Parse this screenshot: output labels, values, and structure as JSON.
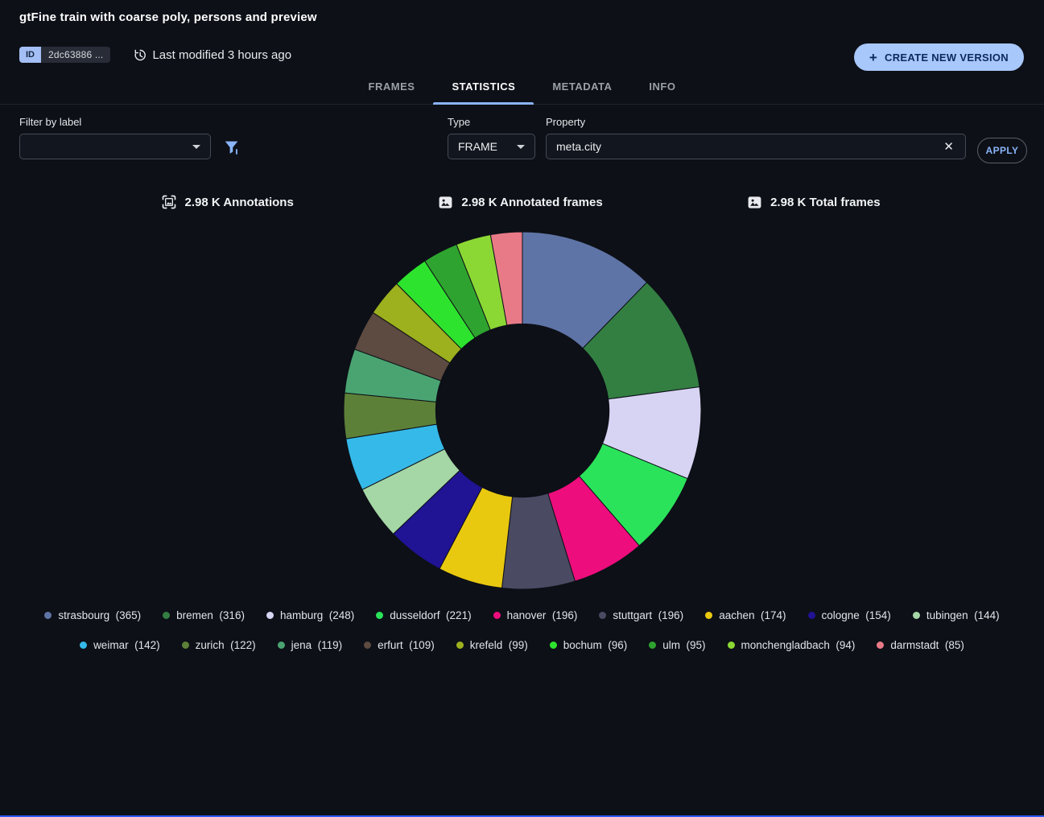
{
  "header": {
    "title": "gtFine train with coarse poly, persons and preview",
    "id_label": "ID",
    "id_value": "2dc63886 ...",
    "last_modified": "Last modified 3 hours ago",
    "create_button": "CREATE NEW VERSION"
  },
  "tabs": [
    {
      "label": "FRAMES",
      "active": false
    },
    {
      "label": "STATISTICS",
      "active": true
    },
    {
      "label": "METADATA",
      "active": false
    },
    {
      "label": "INFO",
      "active": false
    }
  ],
  "filters": {
    "label_filter_label": "Filter by label",
    "label_filter_value": "",
    "type_label": "Type",
    "type_value": "FRAME",
    "property_label": "Property",
    "property_value": "meta.city",
    "apply_label": "APPLY"
  },
  "stats": [
    {
      "icon": "annotations-icon",
      "text": "2.98 K Annotations"
    },
    {
      "icon": "image-icon",
      "text": "2.98 K Annotated frames"
    },
    {
      "icon": "image-icon",
      "text": "2.98 K Total frames"
    }
  ],
  "chart_data": {
    "type": "pie",
    "donut": true,
    "title": "",
    "categories": [
      "strasbourg",
      "bremen",
      "hamburg",
      "dusseldorf",
      "hanover",
      "stuttgart",
      "aachen",
      "cologne",
      "tubingen",
      "weimar",
      "zurich",
      "jena",
      "erfurt",
      "krefeld",
      "bochum",
      "ulm",
      "monchengladbach",
      "darmstadt"
    ],
    "values": [
      365,
      316,
      248,
      221,
      196,
      196,
      174,
      154,
      144,
      142,
      122,
      119,
      109,
      99,
      96,
      95,
      94,
      85
    ],
    "colors": [
      "#5f74a6",
      "#337f42",
      "#d7d4f3",
      "#2ae35a",
      "#ee0d7d",
      "#4a4a63",
      "#e9c90f",
      "#201394",
      "#a5d6a5",
      "#35b9e8",
      "#5d8038",
      "#4aa472",
      "#5d4a40",
      "#9db01e",
      "#2ee32e",
      "#2fa32f",
      "#8bd834",
      "#e87a87"
    ],
    "total": 2975,
    "start_angle_deg": -90,
    "direction": "clockwise",
    "inner_radius_ratio": 0.485,
    "legend_position": "bottom",
    "legend_rows": [
      9,
      9
    ]
  },
  "colors": {
    "accent": "#8ab4f8",
    "primary_button_bg": "#a8c7fa",
    "bottom_bar": "#2e57f2",
    "background": "#0d1017"
  }
}
